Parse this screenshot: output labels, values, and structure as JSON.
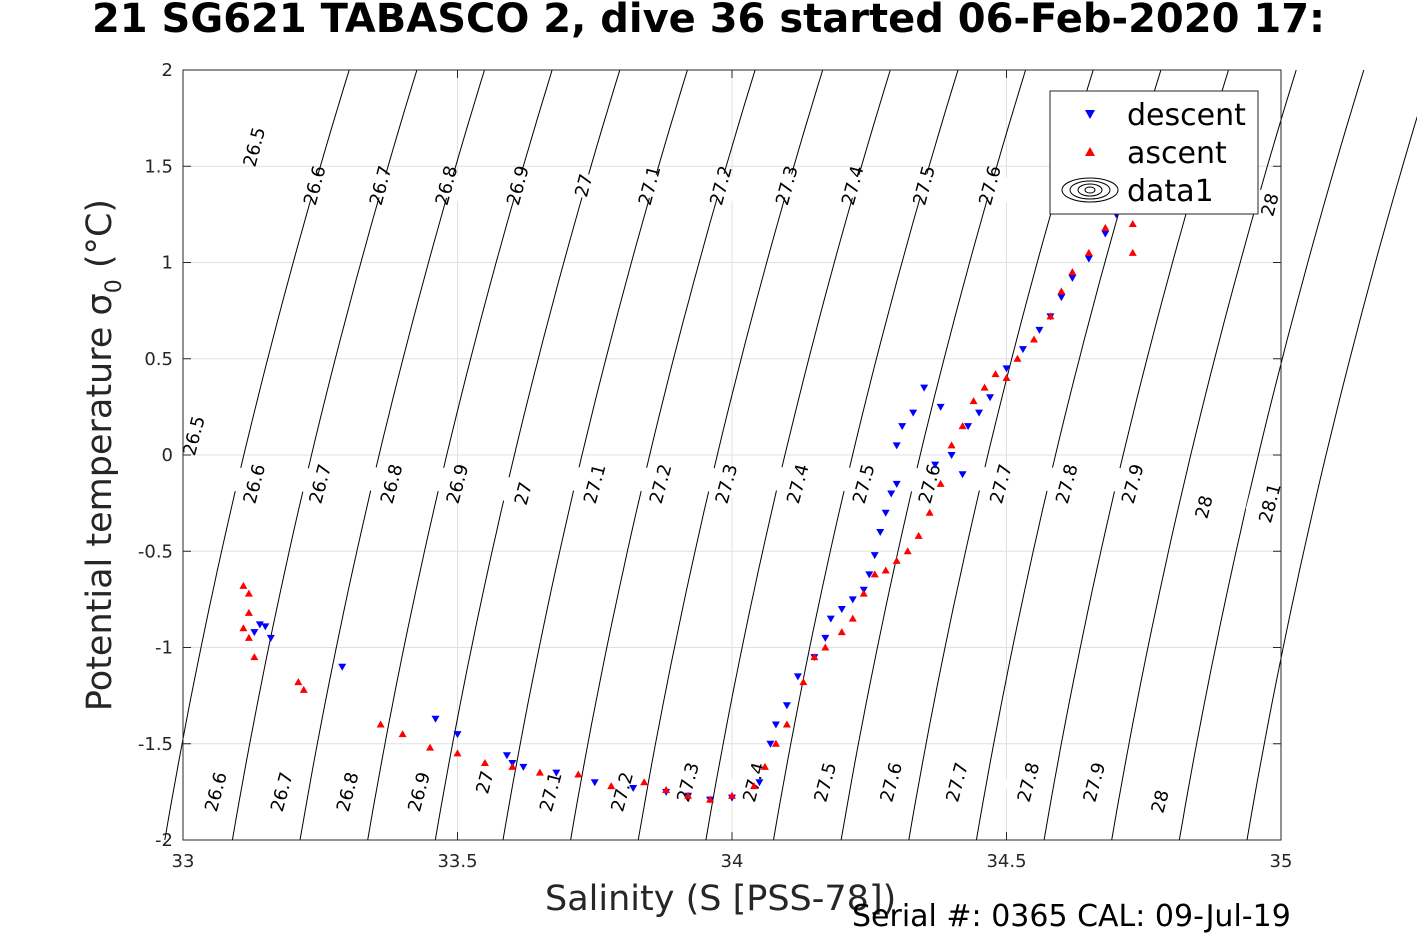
{
  "chart_data": {
    "type": "scatter",
    "title": "21 SG621 TABASCO 2, dive 36 started 06-Feb-2020 17:",
    "xlabel": "Salinity (S [PSS-78])",
    "ylabel_main": "Potential temperature ",
    "ylabel_sigma": "σ",
    "ylabel_sub": "0",
    "ylabel_unit": " (°C)",
    "footer": "Serial #: 0365  CAL: 09-Jul-19",
    "xlim": [
      33,
      35
    ],
    "ylim": [
      -2,
      2
    ],
    "x_ticks": [
      "33",
      "33.5",
      "34",
      "34.5",
      "35"
    ],
    "y_ticks": [
      "-2",
      "-1.5",
      "-1",
      "-0.5",
      "0",
      "0.5",
      "1",
      "1.5",
      "2"
    ],
    "grid": true,
    "legend_position": "top-right",
    "legend": [
      {
        "label": "descent",
        "marker": "triangle-down",
        "color": "#0000ff"
      },
      {
        "label": "ascent",
        "marker": "triangle-up",
        "color": "#ff0000"
      },
      {
        "label": "data1",
        "marker": "contour",
        "color": "#000000"
      }
    ],
    "density_contours": {
      "levels": [
        "26.5",
        "26.6",
        "26.7",
        "26.8",
        "26.9",
        "27",
        "27.1",
        "27.2",
        "27.3",
        "27.4",
        "27.5",
        "27.6",
        "27.7",
        "27.8",
        "27.9",
        "28",
        "28.1"
      ],
      "line_color": "#000000",
      "labels": [
        {
          "text": "26.5",
          "x": 33.13,
          "y": 1.6
        },
        {
          "text": "26.6",
          "x": 33.24,
          "y": 1.4
        },
        {
          "text": "26.7",
          "x": 33.36,
          "y": 1.4
        },
        {
          "text": "26.8",
          "x": 33.48,
          "y": 1.4
        },
        {
          "text": "26.9",
          "x": 33.61,
          "y": 1.4
        },
        {
          "text": "27",
          "x": 33.73,
          "y": 1.4
        },
        {
          "text": "27.1",
          "x": 33.85,
          "y": 1.4
        },
        {
          "text": "27.2",
          "x": 33.98,
          "y": 1.4
        },
        {
          "text": "27.3",
          "x": 34.1,
          "y": 1.4
        },
        {
          "text": "27.4",
          "x": 34.22,
          "y": 1.4
        },
        {
          "text": "27.5",
          "x": 34.35,
          "y": 1.4
        },
        {
          "text": "27.6",
          "x": 34.47,
          "y": 1.4
        },
        {
          "text": "28",
          "x": 34.98,
          "y": 1.3
        },
        {
          "text": "26.5",
          "x": 33.02,
          "y": 0.1
        },
        {
          "text": "26.6",
          "x": 33.13,
          "y": -0.15
        },
        {
          "text": "26.7",
          "x": 33.25,
          "y": -0.15
        },
        {
          "text": "26.8",
          "x": 33.38,
          "y": -0.15
        },
        {
          "text": "26.9",
          "x": 33.5,
          "y": -0.15
        },
        {
          "text": "27",
          "x": 33.62,
          "y": -0.2
        },
        {
          "text": "27.1",
          "x": 33.75,
          "y": -0.15
        },
        {
          "text": "27.2",
          "x": 33.87,
          "y": -0.15
        },
        {
          "text": "27.3",
          "x": 33.99,
          "y": -0.15
        },
        {
          "text": "27.4",
          "x": 34.12,
          "y": -0.15
        },
        {
          "text": "27.5",
          "x": 34.24,
          "y": -0.15
        },
        {
          "text": "27.6",
          "x": 34.36,
          "y": -0.15
        },
        {
          "text": "27.7",
          "x": 34.49,
          "y": -0.15
        },
        {
          "text": "27.8",
          "x": 34.61,
          "y": -0.15
        },
        {
          "text": "27.9",
          "x": 34.73,
          "y": -0.15
        },
        {
          "text": "28",
          "x": 34.86,
          "y": -0.27
        },
        {
          "text": "28.1",
          "x": 34.98,
          "y": -0.25
        },
        {
          "text": "26.6",
          "x": 33.06,
          "y": -1.75
        },
        {
          "text": "26.7",
          "x": 33.18,
          "y": -1.75
        },
        {
          "text": "26.8",
          "x": 33.3,
          "y": -1.75
        },
        {
          "text": "26.9",
          "x": 33.43,
          "y": -1.75
        },
        {
          "text": "27",
          "x": 33.55,
          "y": -1.7
        },
        {
          "text": "27.1",
          "x": 33.67,
          "y": -1.75
        },
        {
          "text": "27.2",
          "x": 33.8,
          "y": -1.75
        },
        {
          "text": "27.3",
          "x": 33.92,
          "y": -1.7
        },
        {
          "text": "27.4",
          "x": 34.04,
          "y": -1.7
        },
        {
          "text": "27.5",
          "x": 34.17,
          "y": -1.7
        },
        {
          "text": "27.6",
          "x": 34.29,
          "y": -1.7
        },
        {
          "text": "27.7",
          "x": 34.41,
          "y": -1.7
        },
        {
          "text": "27.8",
          "x": 34.54,
          "y": -1.7
        },
        {
          "text": "27.9",
          "x": 34.66,
          "y": -1.7
        },
        {
          "text": "28",
          "x": 34.78,
          "y": -1.8
        }
      ]
    },
    "series": [
      {
        "name": "descent",
        "color": "#0000ff",
        "marker": "triangle-down",
        "points": [
          [
            33.13,
            -0.92
          ],
          [
            33.14,
            -0.88
          ],
          [
            33.15,
            -0.89
          ],
          [
            33.16,
            -0.95
          ],
          [
            33.29,
            -1.1
          ],
          [
            33.46,
            -1.37
          ],
          [
            33.5,
            -1.45
          ],
          [
            33.59,
            -1.56
          ],
          [
            33.6,
            -1.6
          ],
          [
            33.62,
            -1.62
          ],
          [
            33.68,
            -1.65
          ],
          [
            33.75,
            -1.7
          ],
          [
            33.82,
            -1.73
          ],
          [
            33.88,
            -1.75
          ],
          [
            33.92,
            -1.77
          ],
          [
            33.96,
            -1.79
          ],
          [
            34.0,
            -1.78
          ],
          [
            34.05,
            -1.7
          ],
          [
            34.07,
            -1.5
          ],
          [
            34.08,
            -1.4
          ],
          [
            34.1,
            -1.3
          ],
          [
            34.12,
            -1.15
          ],
          [
            34.15,
            -1.05
          ],
          [
            34.17,
            -0.95
          ],
          [
            34.18,
            -0.85
          ],
          [
            34.2,
            -0.8
          ],
          [
            34.22,
            -0.75
          ],
          [
            34.24,
            -0.7
          ],
          [
            34.25,
            -0.62
          ],
          [
            34.26,
            -0.52
          ],
          [
            34.27,
            -0.4
          ],
          [
            34.28,
            -0.3
          ],
          [
            34.29,
            -0.2
          ],
          [
            34.3,
            -0.15
          ],
          [
            34.3,
            0.05
          ],
          [
            34.31,
            0.15
          ],
          [
            34.33,
            0.22
          ],
          [
            34.35,
            0.35
          ],
          [
            34.38,
            0.25
          ],
          [
            34.37,
            -0.05
          ],
          [
            34.4,
            0.0
          ],
          [
            34.42,
            -0.1
          ],
          [
            34.43,
            0.15
          ],
          [
            34.45,
            0.22
          ],
          [
            34.47,
            0.3
          ],
          [
            34.5,
            0.45
          ],
          [
            34.53,
            0.55
          ],
          [
            34.56,
            0.65
          ],
          [
            34.58,
            0.72
          ],
          [
            34.6,
            0.82
          ],
          [
            34.62,
            0.92
          ],
          [
            34.65,
            1.02
          ],
          [
            34.68,
            1.15
          ],
          [
            34.7,
            1.25
          ],
          [
            34.72,
            1.3
          ]
        ]
      },
      {
        "name": "ascent",
        "color": "#ff0000",
        "marker": "triangle-up",
        "points": [
          [
            33.11,
            -0.68
          ],
          [
            33.12,
            -0.72
          ],
          [
            33.12,
            -0.82
          ],
          [
            33.11,
            -0.9
          ],
          [
            33.12,
            -0.95
          ],
          [
            33.13,
            -1.05
          ],
          [
            33.21,
            -1.18
          ],
          [
            33.22,
            -1.22
          ],
          [
            33.36,
            -1.4
          ],
          [
            33.4,
            -1.45
          ],
          [
            33.45,
            -1.52
          ],
          [
            33.5,
            -1.55
          ],
          [
            33.55,
            -1.6
          ],
          [
            33.6,
            -1.62
          ],
          [
            33.65,
            -1.65
          ],
          [
            33.72,
            -1.66
          ],
          [
            33.78,
            -1.72
          ],
          [
            33.84,
            -1.7
          ],
          [
            33.88,
            -1.74
          ],
          [
            33.92,
            -1.77
          ],
          [
            33.96,
            -1.79
          ],
          [
            34.0,
            -1.77
          ],
          [
            34.04,
            -1.72
          ],
          [
            34.06,
            -1.62
          ],
          [
            34.08,
            -1.5
          ],
          [
            34.1,
            -1.4
          ],
          [
            34.13,
            -1.18
          ],
          [
            34.15,
            -1.05
          ],
          [
            34.17,
            -1.0
          ],
          [
            34.2,
            -0.92
          ],
          [
            34.22,
            -0.85
          ],
          [
            34.24,
            -0.72
          ],
          [
            34.26,
            -0.62
          ],
          [
            34.28,
            -0.6
          ],
          [
            34.3,
            -0.55
          ],
          [
            34.32,
            -0.5
          ],
          [
            34.34,
            -0.42
          ],
          [
            34.36,
            -0.3
          ],
          [
            34.38,
            -0.15
          ],
          [
            34.4,
            0.05
          ],
          [
            34.42,
            0.15
          ],
          [
            34.44,
            0.28
          ],
          [
            34.46,
            0.35
          ],
          [
            34.48,
            0.42
          ],
          [
            34.5,
            0.4
          ],
          [
            34.52,
            0.5
          ],
          [
            34.55,
            0.6
          ],
          [
            34.58,
            0.72
          ],
          [
            34.6,
            0.85
          ],
          [
            34.62,
            0.95
          ],
          [
            34.65,
            1.05
          ],
          [
            34.68,
            1.18
          ],
          [
            34.72,
            1.3
          ],
          [
            34.73,
            1.2
          ],
          [
            34.73,
            1.05
          ]
        ]
      }
    ]
  }
}
